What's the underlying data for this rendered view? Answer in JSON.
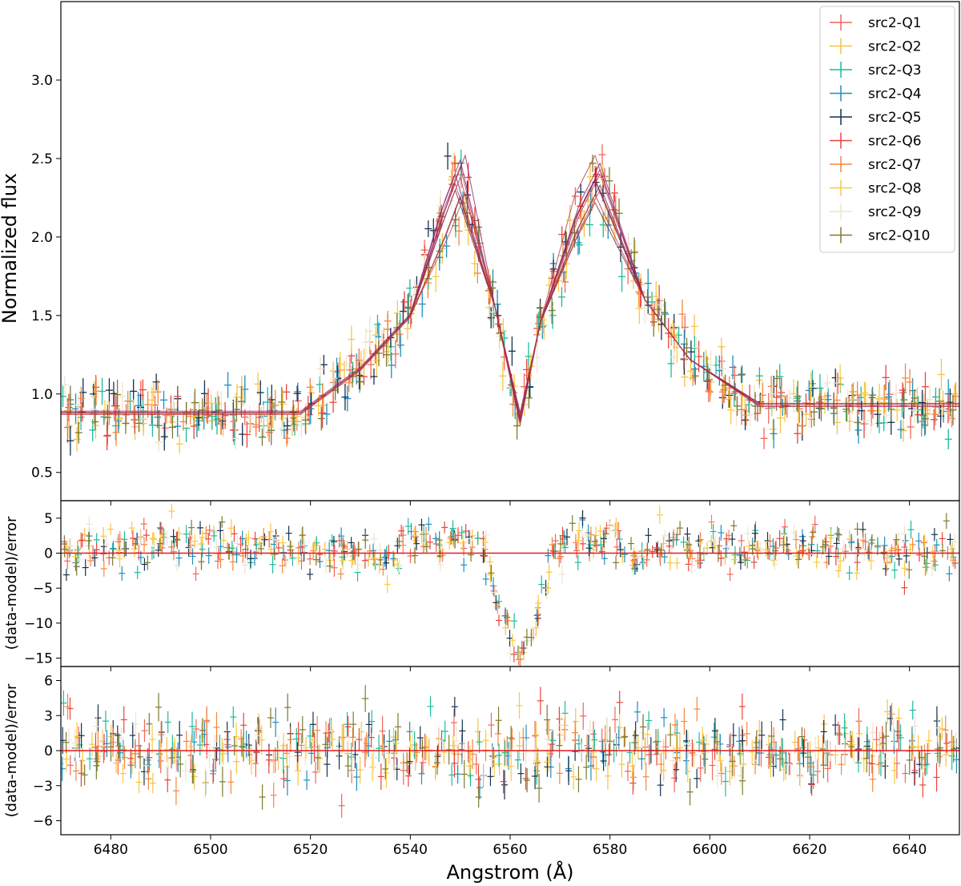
{
  "chart_data": [
    {
      "type": "scatter",
      "panel": "spectrum",
      "title": "",
      "xlabel": "",
      "ylabel": "Normalized flux",
      "xlim": [
        6470,
        6650
      ],
      "ylim": [
        0.32,
        3.5
      ],
      "yticks": [
        0.5,
        1.0,
        1.5,
        2.0,
        2.5,
        3.0
      ],
      "ytick_labels": [
        "0.5",
        "1.0",
        "1.5",
        "2.0",
        "2.5",
        "3.0"
      ],
      "legend_position": "top-right",
      "markers": "error-bar crosses",
      "series": [
        {
          "name": "src2-Q1",
          "color": "#f2665a",
          "continuum_left": 0.88,
          "continuum_right": 0.92,
          "blue_peak": [
            6550,
            2.49
          ],
          "red_peak": [
            6578,
            2.47
          ],
          "absorption_min": [
            6562,
            0.82
          ]
        },
        {
          "name": "src2-Q2",
          "color": "#f6c244",
          "continuum_left": 0.87,
          "continuum_right": 0.93,
          "blue_peak": [
            6549,
            2.34
          ],
          "red_peak": [
            6577,
            2.37
          ],
          "absorption_min": [
            6562,
            0.84
          ]
        },
        {
          "name": "src2-Q3",
          "color": "#1abc9c",
          "continuum_left": 0.88,
          "continuum_right": 0.93,
          "blue_peak": [
            6550,
            2.25
          ],
          "red_peak": [
            6577,
            2.22
          ],
          "absorption_min": [
            6562,
            0.88
          ]
        },
        {
          "name": "src2-Q4",
          "color": "#1c8fbf",
          "continuum_left": 0.88,
          "continuum_right": 0.94,
          "blue_peak": [
            6551,
            2.28
          ],
          "red_peak": [
            6578,
            2.3
          ],
          "absorption_min": [
            6562,
            0.86
          ]
        },
        {
          "name": "src2-Q5",
          "color": "#15324f",
          "continuum_left": 0.89,
          "continuum_right": 0.94,
          "blue_peak": [
            6549,
            2.4
          ],
          "red_peak": [
            6577,
            2.36
          ],
          "absorption_min": [
            6562,
            0.82
          ]
        },
        {
          "name": "src2-Q6",
          "color": "#e8453c",
          "continuum_left": 0.88,
          "continuum_right": 0.92,
          "blue_peak": [
            6550,
            2.45
          ],
          "red_peak": [
            6577,
            2.52
          ],
          "absorption_min": [
            6562,
            0.8
          ]
        },
        {
          "name": "src2-Q7",
          "color": "#f4873f",
          "continuum_left": 0.88,
          "continuum_right": 0.93,
          "blue_peak": [
            6549,
            2.3
          ],
          "red_peak": [
            6578,
            2.33
          ],
          "absorption_min": [
            6562,
            0.84
          ]
        },
        {
          "name": "src2-Q8",
          "color": "#fbc93d",
          "continuum_left": 0.87,
          "continuum_right": 0.93,
          "blue_peak": [
            6550,
            2.26
          ],
          "red_peak": [
            6577,
            2.27
          ],
          "absorption_min": [
            6562,
            0.86
          ]
        },
        {
          "name": "src2-Q9",
          "color": "#ede4d0",
          "continuum_left": 0.88,
          "continuum_right": 0.93,
          "blue_peak": [
            6551,
            2.52
          ],
          "red_peak": [
            6578,
            2.43
          ],
          "absorption_min": [
            6562,
            0.84
          ]
        },
        {
          "name": "src2-Q10",
          "color": "#7d7a2e",
          "continuum_left": 0.88,
          "continuum_right": 0.93,
          "blue_peak": [
            6550,
            2.38
          ],
          "red_peak": [
            6578,
            2.4
          ],
          "absorption_min": [
            6562,
            0.82
          ]
        }
      ],
      "model_curve_colors": [
        "#8b1a6b",
        "#b23a48",
        "#6a1b4d",
        "#c0392b"
      ]
    },
    {
      "type": "scatter",
      "panel": "residuals-1",
      "title": "",
      "xlabel": "",
      "ylabel": "(data-model)/error",
      "xlim": [
        6470,
        6650
      ],
      "ylim": [
        -16.2,
        7.5
      ],
      "yticks": [
        -15,
        -10,
        -5,
        0,
        5
      ],
      "ytick_labels": [
        "−15",
        "−10",
        "−5",
        "0",
        "5"
      ],
      "zero_line_color": "#e31a1c",
      "dip_center": 6562,
      "dip_min": -13
    },
    {
      "type": "scatter",
      "panel": "residuals-2",
      "title": "",
      "xlabel": "Angstrom (Å)",
      "ylabel": "(data-model)/error",
      "xlim": [
        6470,
        6650
      ],
      "ylim": [
        -7.2,
        7.2
      ],
      "yticks": [
        -6,
        -3,
        0,
        3,
        6
      ],
      "ytick_labels": [
        "−6",
        "−3",
        "0",
        "3",
        "6"
      ],
      "xticks": [
        6480,
        6500,
        6520,
        6540,
        6560,
        6580,
        6600,
        6620,
        6640
      ],
      "xtick_labels": [
        "6480",
        "6500",
        "6520",
        "6540",
        "6560",
        "6580",
        "6600",
        "6620",
        "6640"
      ],
      "zero_line_color": "#e31a1c"
    }
  ]
}
